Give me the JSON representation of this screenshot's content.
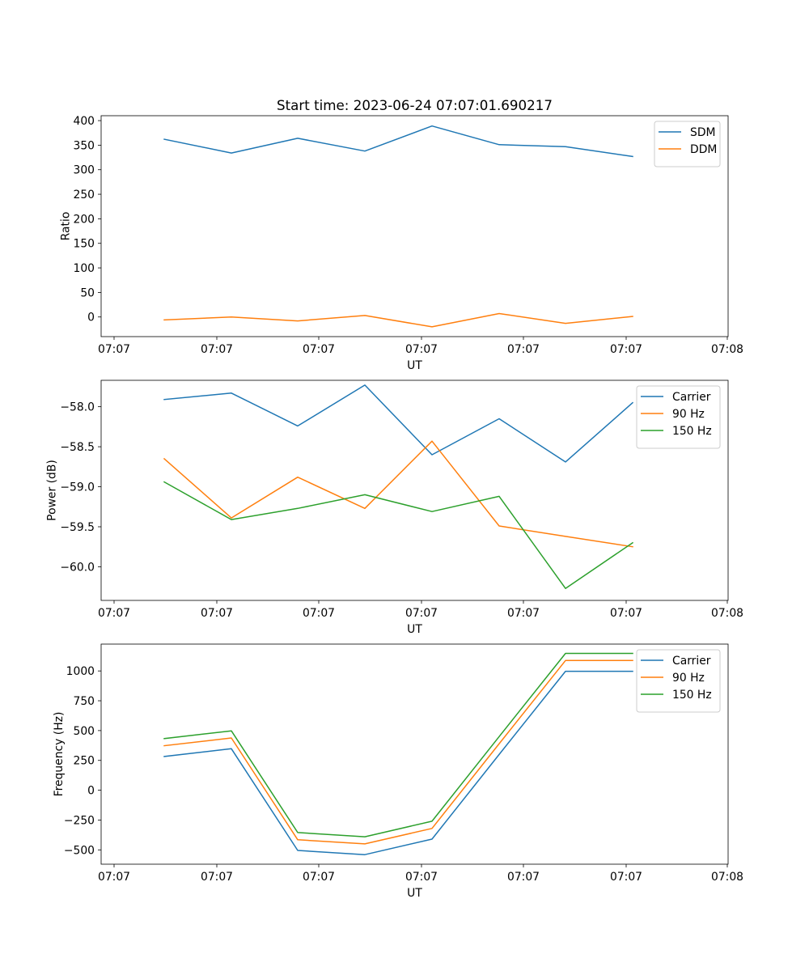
{
  "figure": {
    "title": "Start time: 2023-06-24 07:07:01.690217"
  },
  "colors": {
    "blue": "#1f77b4",
    "orange": "#ff7f0e",
    "green": "#2ca02c"
  },
  "chart_data": [
    {
      "type": "line",
      "title": "",
      "xlabel": "UT",
      "ylabel": "Ratio",
      "x_tick_labels": [
        "07:07",
        "07:07",
        "07:07",
        "07:07",
        "07:07",
        "07:07",
        "07:07",
        "07:08"
      ],
      "y_ticks": [
        0,
        50,
        100,
        150,
        200,
        250,
        300,
        350,
        400
      ],
      "y_tick_labels": [
        "0",
        "50",
        "100",
        "150",
        "200",
        "250",
        "300",
        "350",
        "400"
      ],
      "ylim": [
        -40,
        410
      ],
      "grid": false,
      "legend_position": "top-right",
      "series": [
        {
          "name": "SDM",
          "color": "#1f77b4",
          "values": [
            362,
            334,
            364,
            338,
            389,
            351,
            347,
            327
          ]
        },
        {
          "name": "DDM",
          "color": "#ff7f0e",
          "values": [
            -6,
            0,
            -8,
            3,
            -20,
            7,
            -13,
            1
          ]
        }
      ]
    },
    {
      "type": "line",
      "title": "",
      "xlabel": "UT",
      "ylabel": "Power (dB)",
      "x_tick_labels": [
        "07:07",
        "07:07",
        "07:07",
        "07:07",
        "07:07",
        "07:07",
        "07:07",
        "07:08"
      ],
      "y_ticks": [
        -60.0,
        -59.5,
        -59.0,
        -58.5,
        -58.0
      ],
      "y_tick_labels": [
        "−60.0",
        "−59.5",
        "−59.0",
        "−58.5",
        "−58.0"
      ],
      "ylim": [
        -60.42,
        -57.67
      ],
      "grid": false,
      "legend_position": "top-right",
      "series": [
        {
          "name": "Carrier",
          "color": "#1f77b4",
          "values": [
            -57.91,
            -57.83,
            -58.24,
            -57.73,
            -58.6,
            -58.15,
            -58.69,
            -57.95
          ]
        },
        {
          "name": "90 Hz",
          "color": "#ff7f0e",
          "values": [
            -58.65,
            -59.39,
            -58.88,
            -59.27,
            -58.43,
            -59.49,
            -59.62,
            -59.75
          ]
        },
        {
          "name": "150 Hz",
          "color": "#2ca02c",
          "values": [
            -58.94,
            -59.41,
            -59.27,
            -59.1,
            -59.31,
            -59.12,
            -60.27,
            -59.7
          ]
        }
      ]
    },
    {
      "type": "line",
      "title": "",
      "xlabel": "UT",
      "ylabel": "Frequency (Hz)",
      "x_tick_labels": [
        "07:07",
        "07:07",
        "07:07",
        "07:07",
        "07:07",
        "07:07",
        "07:07",
        "07:08"
      ],
      "y_ticks": [
        -500,
        -250,
        0,
        250,
        500,
        750,
        1000
      ],
      "y_tick_labels": [
        "−500",
        "−250",
        "0",
        "250",
        "500",
        "750",
        "1000"
      ],
      "ylim": [
        -620,
        1225
      ],
      "grid": false,
      "legend_position": "top-right",
      "series": [
        {
          "name": "Carrier",
          "color": "#1f77b4",
          "values": [
            283,
            348,
            -505,
            -540,
            -410,
            300,
            997,
            997
          ]
        },
        {
          "name": "90 Hz",
          "color": "#ff7f0e",
          "values": [
            373,
            438,
            -415,
            -450,
            -320,
            390,
            1087,
            1087
          ]
        },
        {
          "name": "150 Hz",
          "color": "#2ca02c",
          "values": [
            433,
            498,
            -355,
            -390,
            -260,
            450,
            1147,
            1147
          ]
        }
      ]
    }
  ]
}
